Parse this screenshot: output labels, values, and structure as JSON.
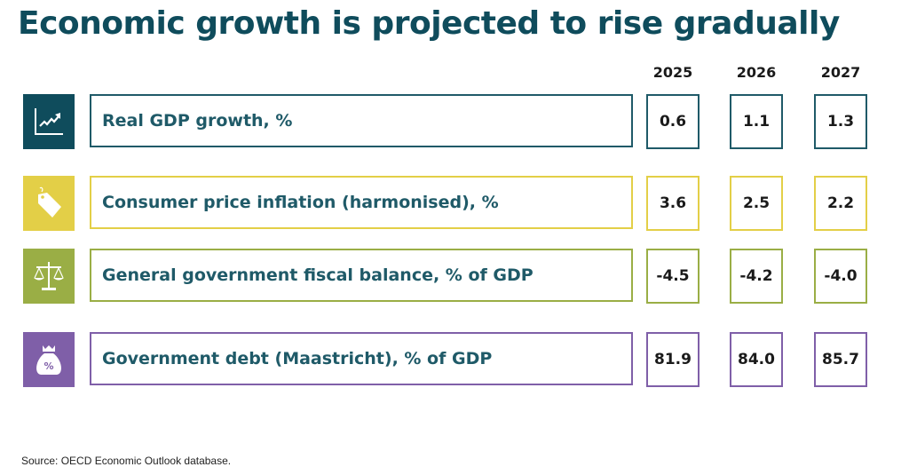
{
  "title": "Economic growth is projected to rise gradually",
  "source": "Source: OECD Economic Outlook database.",
  "chart_data": {
    "type": "table",
    "columns": [
      "2025",
      "2026",
      "2027"
    ],
    "rows": [
      {
        "label": "Real GDP growth, %",
        "icon": "chart-growth-icon",
        "color": "#0f4c5c",
        "values": [
          "0.6",
          "1.1",
          "1.3"
        ]
      },
      {
        "label": "Consumer price inflation (harmonised), %",
        "icon": "price-tag-icon",
        "color": "#e3cf47",
        "values": [
          "3.6",
          "2.5",
          "2.2"
        ]
      },
      {
        "label": "General government fiscal balance, % of GDP",
        "icon": "scales-icon",
        "color": "#9aae45",
        "values": [
          "-4.5",
          "-4.2",
          "-4.0"
        ]
      },
      {
        "label": "Government debt (Maastricht), % of GDP",
        "icon": "money-bag-icon",
        "color": "#7f5fa8",
        "values": [
          "81.9",
          "84.0",
          "85.7"
        ]
      }
    ]
  }
}
